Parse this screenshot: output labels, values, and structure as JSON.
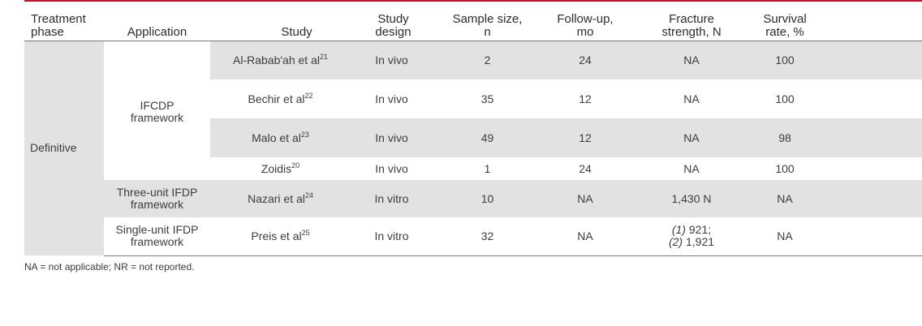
{
  "headers": [
    [
      "Treatment",
      "phase"
    ],
    [
      "Application"
    ],
    [
      "Study"
    ],
    [
      "Study",
      "design"
    ],
    [
      "Sample size,",
      "n"
    ],
    [
      "Follow-up,",
      "mo"
    ],
    [
      "Fracture",
      "strength, N"
    ],
    [
      "Survival",
      "rate, %"
    ]
  ],
  "phase": "Definitive",
  "applications": {
    "a1": [
      "IFCDP",
      "framework"
    ],
    "a2": [
      "Three-unit IFDP",
      "framework"
    ],
    "a3": [
      "Single-unit IFDP",
      "framework"
    ]
  },
  "rows": [
    {
      "study": "Al-Rabab'ah et al",
      "ref": "21",
      "design": "In vivo",
      "n": "2",
      "followup": "24",
      "strength": "NA",
      "survival": "100"
    },
    {
      "study": "Bechir et al",
      "ref": "22",
      "design": "In vivo",
      "n": "35",
      "followup": "12",
      "strength": "NA",
      "survival": "100"
    },
    {
      "study": "Malo et al",
      "ref": "23",
      "design": "In vivo",
      "n": "49",
      "followup": "12",
      "strength": "NA",
      "survival": "98"
    },
    {
      "study": "Zoidis",
      "ref": "20",
      "design": "In vivo",
      "n": "1",
      "followup": "24",
      "strength": "NA",
      "survival": "100"
    },
    {
      "study": "Nazari et al",
      "ref": "24",
      "design": "In vitro",
      "n": "10",
      "followup": "NA",
      "strength": "1,430 N",
      "survival": "NA"
    },
    {
      "study": "Preis et al",
      "ref": "25",
      "design": "In vitro",
      "n": "32",
      "followup": "NA",
      "strength_lines": [
        {
          "label": "(1)",
          "value": "921;"
        },
        {
          "label": "(2)",
          "value": "1,921"
        }
      ],
      "survival": "NA"
    }
  ],
  "footnote": "NA = not applicable; NR = not reported."
}
